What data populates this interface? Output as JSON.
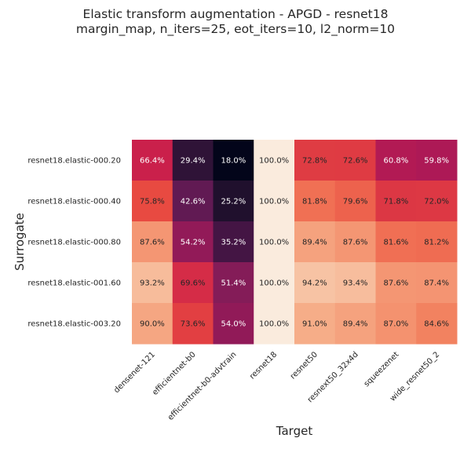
{
  "chart_data": {
    "type": "heatmap",
    "title": "Elastic transform augmentation - APGD - resnet18",
    "subtitle": "margin_map, n_iters=25, eot_iters=10, l2_norm=10",
    "xlabel": "Target",
    "ylabel": "Surrogate",
    "x_categories": [
      "densenet-121",
      "efficientnet-b0",
      "efficientnet-b0-advtrain",
      "resnet18",
      "resnet50",
      "resnext50_32x4d",
      "squeezenet",
      "wide_resnet50_2"
    ],
    "y_categories": [
      "resnet18.elastic-000.20",
      "resnet18.elastic-000.40",
      "resnet18.elastic-000.80",
      "resnet18.elastic-001.60",
      "resnet18.elastic-003.20"
    ],
    "values": [
      [
        66.4,
        29.4,
        18.0,
        100.0,
        72.8,
        72.6,
        60.8,
        59.8
      ],
      [
        75.8,
        42.6,
        25.2,
        100.0,
        81.8,
        79.6,
        71.8,
        72.0
      ],
      [
        87.6,
        54.2,
        35.2,
        100.0,
        89.4,
        87.6,
        81.6,
        81.2
      ],
      [
        93.2,
        69.6,
        51.4,
        100.0,
        94.2,
        93.4,
        87.6,
        87.4
      ],
      [
        90.0,
        73.6,
        54.0,
        100.0,
        91.0,
        89.4,
        87.0,
        84.6
      ]
    ],
    "labels": [
      [
        "66.4%",
        "29.4%",
        "18.0%",
        "100.0%",
        "72.8%",
        "72.6%",
        "60.8%",
        "59.8%"
      ],
      [
        "75.8%",
        "42.6%",
        "25.2%",
        "100.0%",
        "81.8%",
        "79.6%",
        "71.8%",
        "72.0%"
      ],
      [
        "87.6%",
        "54.2%",
        "35.2%",
        "100.0%",
        "89.4%",
        "87.6%",
        "81.6%",
        "81.2%"
      ],
      [
        "93.2%",
        "69.6%",
        "51.4%",
        "100.0%",
        "94.2%",
        "93.4%",
        "87.6%",
        "87.4%"
      ],
      [
        "90.0%",
        "73.6%",
        "54.0%",
        "100.0%",
        "91.0%",
        "89.4%",
        "87.0%",
        "84.6%"
      ]
    ],
    "vmin": 18.0,
    "vmax": 100.0,
    "colormap": "rocket",
    "grid": false,
    "legend": "none"
  }
}
